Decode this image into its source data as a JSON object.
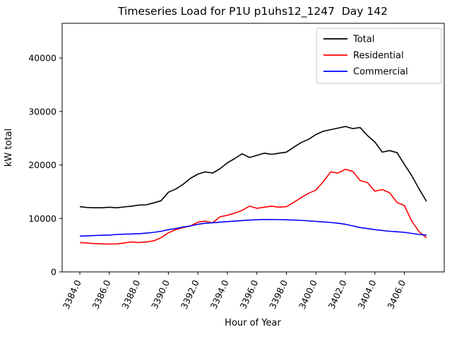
{
  "chart_data": {
    "type": "line",
    "title": "Timeseries Load for P1U p1uhs12_1247  Day 142",
    "xlabel": "Hour of Year",
    "ylabel": "kW total",
    "grid": false,
    "legend_position": "upper right",
    "xlim": [
      3382.8,
      3408.7
    ],
    "ylim": [
      0,
      46500
    ],
    "xticks": {
      "values": [
        3384,
        3386,
        3388,
        3390,
        3392,
        3394,
        3396,
        3398,
        3400,
        3402,
        3404,
        3406
      ],
      "labels": [
        "3384.0",
        "3386.0",
        "3388.0",
        "3390.0",
        "3392.0",
        "3394.0",
        "3396.0",
        "3398.0",
        "3400.0",
        "3402.0",
        "3404.0",
        "3406.0"
      ]
    },
    "yticks": {
      "values": [
        0,
        10000,
        20000,
        30000,
        40000
      ],
      "labels": [
        "0",
        "10000",
        "20000",
        "30000",
        "40000"
      ]
    },
    "x": [
      3384.0,
      3384.5,
      3385.0,
      3385.5,
      3386.0,
      3386.5,
      3387.0,
      3387.5,
      3388.0,
      3388.5,
      3389.0,
      3389.5,
      3390.0,
      3390.5,
      3391.0,
      3391.5,
      3392.0,
      3392.5,
      3393.0,
      3393.5,
      3394.0,
      3394.5,
      3395.0,
      3395.5,
      3396.0,
      3396.5,
      3397.0,
      3397.5,
      3398.0,
      3398.5,
      3399.0,
      3399.5,
      3400.0,
      3400.5,
      3401.0,
      3401.5,
      3402.0,
      3402.5,
      3403.0,
      3403.5,
      3404.0,
      3404.5,
      3405.0,
      3405.5,
      3406.0,
      3406.5,
      3407.0,
      3407.5
    ],
    "series": [
      {
        "name": "Total",
        "color": "#000000",
        "values": [
          12200,
          12050,
          12000,
          12000,
          12100,
          12000,
          12150,
          12300,
          12500,
          12550,
          12900,
          13300,
          14900,
          15500,
          16400,
          17500,
          18300,
          18700,
          18500,
          19300,
          20400,
          21200,
          22100,
          21400,
          21800,
          22200,
          22000,
          22200,
          22400,
          23300,
          24200,
          24800,
          25700,
          26300,
          26600,
          26900,
          27200,
          26800,
          27000,
          25500,
          24300,
          22400,
          22700,
          22300,
          20100,
          18000,
          15500,
          13200
        ]
      },
      {
        "name": "Residential",
        "color": "#ff0000",
        "values": [
          5500,
          5400,
          5300,
          5250,
          5200,
          5250,
          5400,
          5600,
          5500,
          5600,
          5800,
          6400,
          7300,
          7900,
          8300,
          8600,
          9300,
          9500,
          9200,
          10300,
          10600,
          11000,
          11500,
          12300,
          11900,
          12100,
          12300,
          12100,
          12200,
          13000,
          13900,
          14700,
          15300,
          16900,
          18700,
          18500,
          19200,
          18800,
          17100,
          16700,
          15100,
          15400,
          14800,
          13000,
          12400,
          9500,
          7500,
          6400
        ]
      },
      {
        "name": "Commercial",
        "color": "#0000ff",
        "values": [
          6700,
          6750,
          6800,
          6850,
          6900,
          7000,
          7050,
          7100,
          7150,
          7250,
          7400,
          7600,
          7900,
          8100,
          8400,
          8600,
          8900,
          9100,
          9200,
          9300,
          9400,
          9500,
          9600,
          9700,
          9750,
          9800,
          9800,
          9780,
          9750,
          9700,
          9650,
          9550,
          9450,
          9350,
          9250,
          9100,
          8900,
          8600,
          8300,
          8100,
          7900,
          7750,
          7600,
          7500,
          7400,
          7200,
          7000,
          6900
        ]
      }
    ]
  }
}
